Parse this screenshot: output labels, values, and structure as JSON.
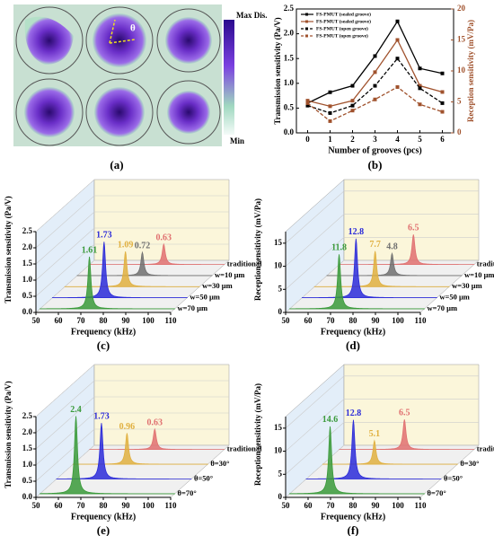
{
  "panel_a": {
    "label": "(a)",
    "colorbar_max": "Max Dis.",
    "colorbar_min": "Min",
    "angle_symbol": "θ"
  },
  "chart_data": [
    {
      "type": "line",
      "label": "(b)",
      "x_label": "Number of grooves (pcs)",
      "y_label": "Transmission sensitivity (Pa/V)",
      "y2_label": "Reception sensitivity (mV/Pa)",
      "x": [
        0,
        1,
        2,
        3,
        4,
        5,
        6
      ],
      "xlim": [
        -0.5,
        6.5
      ],
      "xticks": [
        0,
        1,
        2,
        3,
        4,
        5,
        6
      ],
      "ylim": [
        0,
        2.5
      ],
      "yticks": [
        {
          "value": 0,
          "label": "0.0"
        },
        0.5,
        {
          "value": 1,
          "label": "1.0"
        },
        1.5,
        {
          "value": 2,
          "label": "2.0"
        },
        2.5
      ],
      "y2lim": [
        0,
        20
      ],
      "y2ticks": [
        0,
        5,
        10,
        15,
        20
      ],
      "legend": "upper left",
      "series": [
        {
          "name": "FS-PMUT (sealed groove)",
          "color": "#000000",
          "dash": false,
          "values": [
            0.6,
            0.82,
            0.95,
            1.55,
            2.25,
            1.3,
            1.2
          ]
        },
        {
          "name": "FS-PMUT (sealed groove)",
          "color": "#a0522d",
          "dash": false,
          "axis": "y2",
          "values": [
            5.2,
            4.3,
            5.2,
            9.8,
            15.0,
            7.6,
            6.6
          ]
        },
        {
          "name": "FS-PMUT (open groove)",
          "color": "#000000",
          "dash": true,
          "values": [
            0.55,
            0.4,
            0.55,
            0.95,
            1.5,
            0.9,
            0.6
          ]
        },
        {
          "name": "FS-PMUT (open groove)",
          "color": "#a0522d",
          "dash": true,
          "axis": "y2",
          "values": [
            4.8,
            1.9,
            3.6,
            5.4,
            7.4,
            4.6,
            3.4
          ]
        }
      ]
    },
    {
      "type": "waterfall",
      "label": "(c)",
      "x_label": "Frequency (kHz)",
      "y_label": "Transmission sensitivity (Pa/V)",
      "xlim": [
        50,
        110
      ],
      "xticks": [
        50,
        60,
        70,
        80,
        90,
        100,
        110
      ],
      "ylim": [
        0,
        2.5
      ],
      "yticks": [
        {
          "value": 0,
          "label": "0.0"
        },
        0.5,
        {
          "value": 1,
          "label": "1.0"
        },
        1.5,
        {
          "value": 2,
          "label": "2.0"
        },
        2.5
      ],
      "categories": [
        "traditional",
        "w=10 μm",
        "w=30 μm",
        "w=50 μm",
        "w=70 μm"
      ],
      "values": [
        0.63,
        0.72,
        1.09,
        1.73,
        1.61
      ],
      "peak_frequencies": [
        83,
        79,
        77,
        73,
        72
      ],
      "colors": [
        "#e07070",
        "#707070",
        "#e0b040",
        "#2b2bd9",
        "#3a9a3a"
      ]
    },
    {
      "type": "waterfall",
      "label": "(d)",
      "x_label": "Frequency (kHz)",
      "y_label": "Reception sensitivity (mV/Pa)",
      "xlim": [
        50,
        110
      ],
      "xticks": [
        50,
        60,
        70,
        80,
        90,
        100,
        110
      ],
      "ylim": [
        0,
        17.5
      ],
      "yticks": [
        0,
        5,
        10,
        15
      ],
      "categories": [
        "traditional",
        "w=10 μm",
        "w=30 μm",
        "w=50 μm",
        "w=70 μm"
      ],
      "values": [
        6.5,
        4.8,
        7.7,
        12.8,
        11.8
      ],
      "peak_frequencies": [
        83,
        79,
        77,
        74,
        72
      ],
      "colors": [
        "#e07070",
        "#707070",
        "#e0b040",
        "#2b2bd9",
        "#3a9a3a"
      ]
    },
    {
      "type": "waterfall",
      "label": "(e)",
      "x_label": "Frequency (kHz)",
      "y_label": "Transmission sensitivity (Pa/V)",
      "xlim": [
        50,
        110
      ],
      "xticks": [
        50,
        60,
        70,
        80,
        90,
        100,
        110
      ],
      "ylim": [
        0,
        2.5
      ],
      "yticks": [
        {
          "value": 0,
          "label": "0.0"
        },
        0.5,
        {
          "value": 1,
          "label": "1.0"
        },
        1.5,
        {
          "value": 2,
          "label": "2.0"
        },
        2.5
      ],
      "categories": [
        "traditional",
        "θ=30°",
        "θ=50°",
        "θ=70°"
      ],
      "values": [
        0.63,
        0.96,
        1.73,
        2.4
      ],
      "peak_frequencies": [
        79,
        74,
        70,
        66
      ],
      "colors": [
        "#e07070",
        "#e0b040",
        "#2b2bd9",
        "#3a9a3a"
      ]
    },
    {
      "type": "waterfall",
      "label": "(f)",
      "x_label": "Frequency (kHz)",
      "y_label": "Reception sensitivity (mV/Pa)",
      "xlim": [
        50,
        110
      ],
      "xticks": [
        50,
        60,
        70,
        80,
        90,
        100,
        110
      ],
      "ylim": [
        0,
        17.5
      ],
      "yticks": [
        0,
        5,
        10,
        15
      ],
      "categories": [
        "traditional",
        "θ=30°",
        "θ=50°",
        "θ=70°"
      ],
      "values": [
        6.5,
        5.1,
        12.8,
        14.6
      ],
      "peak_frequencies": [
        79,
        73,
        71,
        68
      ],
      "colors": [
        "#e07070",
        "#e0b040",
        "#2b2bd9",
        "#3a9a3a"
      ]
    }
  ]
}
